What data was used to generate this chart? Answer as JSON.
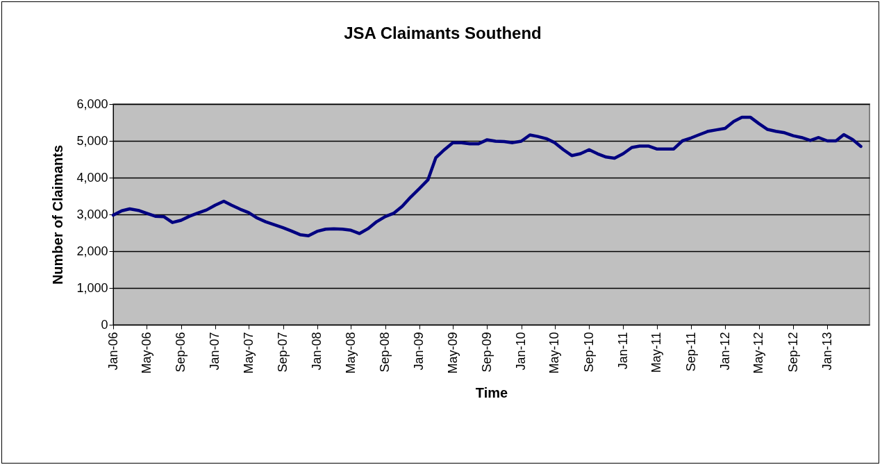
{
  "chart_data": {
    "type": "line",
    "title": "JSA Claimants Southend",
    "xlabel": "Time",
    "ylabel": "Number of Claimants",
    "x": [
      "2006-01",
      "2006-02",
      "2006-03",
      "2006-04",
      "2006-05",
      "2006-06",
      "2006-07",
      "2006-08",
      "2006-09",
      "2006-10",
      "2006-11",
      "2006-12",
      "2007-01",
      "2007-02",
      "2007-03",
      "2007-04",
      "2007-05",
      "2007-06",
      "2007-07",
      "2007-08",
      "2007-09",
      "2007-10",
      "2007-11",
      "2007-12",
      "2008-01",
      "2008-02",
      "2008-03",
      "2008-04",
      "2008-05",
      "2008-06",
      "2008-07",
      "2008-08",
      "2008-09",
      "2008-10",
      "2008-11",
      "2008-12",
      "2009-01",
      "2009-02",
      "2009-03",
      "2009-04",
      "2009-05",
      "2009-06",
      "2009-07",
      "2009-08",
      "2009-09",
      "2009-10",
      "2009-11",
      "2009-12",
      "2010-01",
      "2010-02",
      "2010-03",
      "2010-04",
      "2010-05",
      "2010-06",
      "2010-07",
      "2010-08",
      "2010-09",
      "2010-10",
      "2010-11",
      "2010-12",
      "2011-01",
      "2011-02",
      "2011-03",
      "2011-04",
      "2011-05",
      "2011-06",
      "2011-07",
      "2011-08",
      "2011-09",
      "2011-10",
      "2011-11",
      "2011-12",
      "2012-01",
      "2012-02",
      "2012-03",
      "2012-04",
      "2012-05",
      "2012-06",
      "2012-07",
      "2012-08",
      "2012-09",
      "2012-10",
      "2012-11",
      "2012-12",
      "2013-01",
      "2013-02",
      "2013-03",
      "2013-04",
      "2013-05"
    ],
    "series": [
      {
        "color": "#000080",
        "values": [
          2980,
          3100,
          3150,
          3110,
          3030,
          2950,
          2940,
          2780,
          2840,
          2950,
          3040,
          3120,
          3250,
          3360,
          3250,
          3140,
          3050,
          2900,
          2800,
          2720,
          2640,
          2550,
          2450,
          2420,
          2540,
          2600,
          2610,
          2600,
          2570,
          2480,
          2610,
          2800,
          2940,
          3030,
          3220,
          3470,
          3700,
          3940,
          4540,
          4760,
          4950,
          4950,
          4920,
          4920,
          5030,
          4990,
          4980,
          4950,
          4990,
          5160,
          5120,
          5060,
          4950,
          4760,
          4600,
          4650,
          4760,
          4650,
          4560,
          4530,
          4650,
          4820,
          4860,
          4860,
          4780,
          4780,
          4780,
          5000,
          5080,
          5170,
          5260,
          5300,
          5340,
          5530,
          5640,
          5640,
          5470,
          5310,
          5260,
          5220,
          5140,
          5090,
          5010,
          5090,
          5000,
          5000,
          5170,
          5040,
          4850
        ]
      }
    ],
    "xlim": [
      "2006-01",
      "2013-06"
    ],
    "xticks": [
      {
        "value": "2006-01",
        "label": "Jan-06"
      },
      {
        "value": "2006-05",
        "label": "May-06"
      },
      {
        "value": "2006-09",
        "label": "Sep-06"
      },
      {
        "value": "2007-01",
        "label": "Jan-07"
      },
      {
        "value": "2007-05",
        "label": "May-07"
      },
      {
        "value": "2007-09",
        "label": "Sep-07"
      },
      {
        "value": "2008-01",
        "label": "Jan-08"
      },
      {
        "value": "2008-05",
        "label": "May-08"
      },
      {
        "value": "2008-09",
        "label": "Sep-08"
      },
      {
        "value": "2009-01",
        "label": "Jan-09"
      },
      {
        "value": "2009-05",
        "label": "May-09"
      },
      {
        "value": "2009-09",
        "label": "Sep-09"
      },
      {
        "value": "2010-01",
        "label": "Jan-10"
      },
      {
        "value": "2010-05",
        "label": "May-10"
      },
      {
        "value": "2010-09",
        "label": "Sep-10"
      },
      {
        "value": "2011-01",
        "label": "Jan-11"
      },
      {
        "value": "2011-05",
        "label": "May-11"
      },
      {
        "value": "2011-09",
        "label": "Sep-11"
      },
      {
        "value": "2012-01",
        "label": "Jan-12"
      },
      {
        "value": "2012-05",
        "label": "May-12"
      },
      {
        "value": "2012-09",
        "label": "Sep-12"
      },
      {
        "value": "2013-01",
        "label": "Jan-13"
      }
    ],
    "ylim": [
      0,
      6000
    ],
    "yticks": [
      {
        "value": 0,
        "label": "0"
      },
      {
        "value": 1000,
        "label": "1,000"
      },
      {
        "value": 2000,
        "label": "2,000"
      },
      {
        "value": 3000,
        "label": "3,000"
      },
      {
        "value": 4000,
        "label": "4,000"
      },
      {
        "value": 5000,
        "label": "5,000"
      },
      {
        "value": 6000,
        "label": "6,000"
      }
    ],
    "grid": "y",
    "line_style": "solid"
  }
}
